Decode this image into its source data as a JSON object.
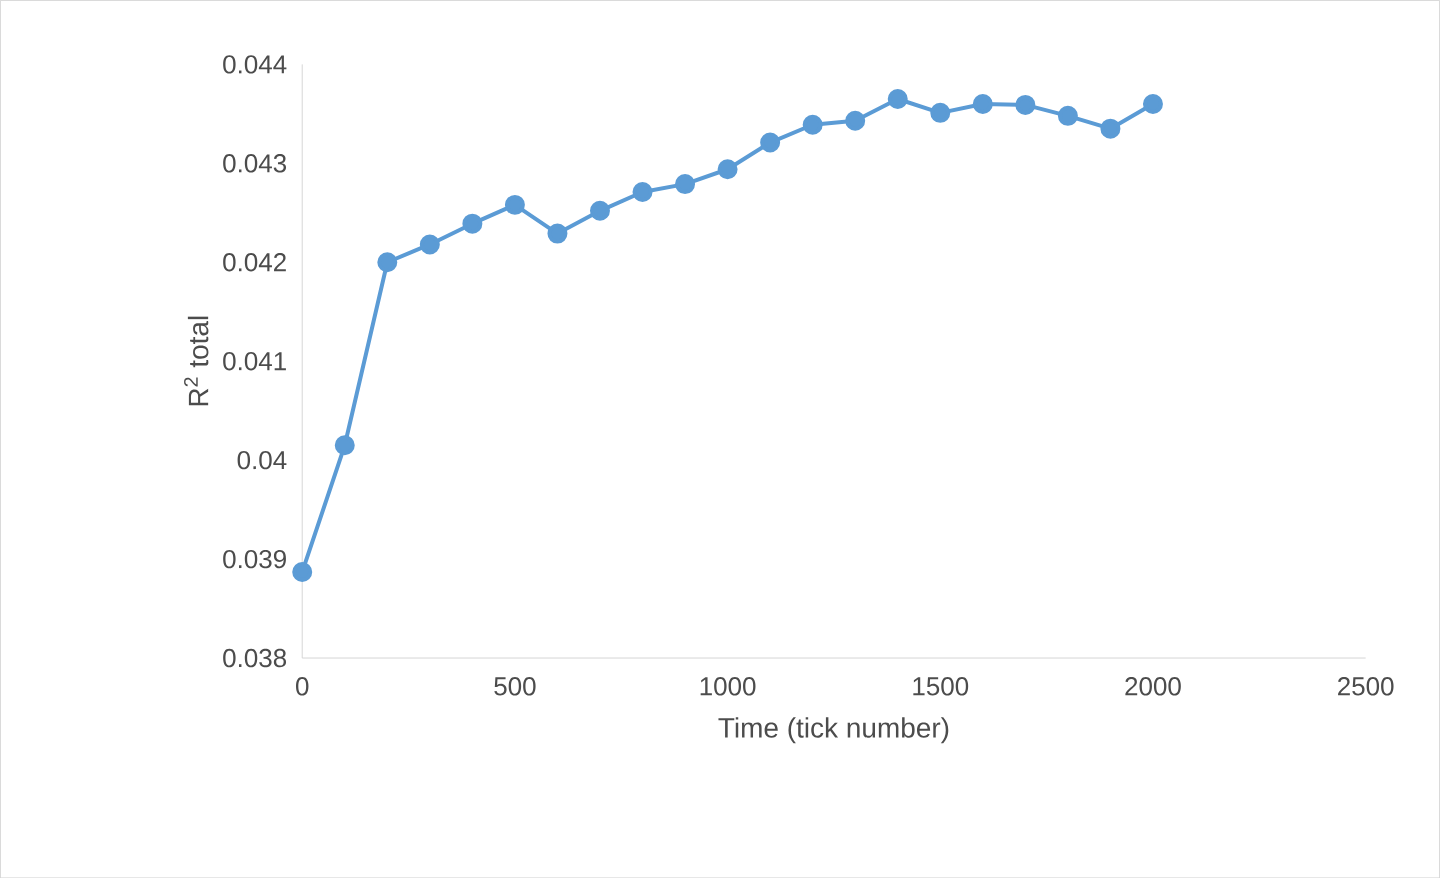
{
  "chart_data": {
    "type": "line",
    "xlabel": "Time (tick number)",
    "ylabel": "R$^{2}$ total",
    "x": [
      0,
      100,
      200,
      300,
      400,
      500,
      600,
      700,
      800,
      900,
      1000,
      1100,
      1200,
      1300,
      1400,
      1500,
      1600,
      1700,
      1800,
      1900,
      2000
    ],
    "series": [
      {
        "color": "#5b9bd5",
        "values": [
          0.03887,
          0.04015,
          0.042,
          0.04218,
          0.04239,
          0.04258,
          0.04229,
          0.04252,
          0.04271,
          0.04279,
          0.04294,
          0.04321,
          0.04339,
          0.04343,
          0.04365,
          0.04351,
          0.0436,
          0.04359,
          0.04348,
          0.04335,
          0.0436
        ]
      }
    ],
    "xlim": [
      0,
      2500
    ],
    "xticks": [
      0,
      500,
      1000,
      1500,
      2000,
      2500
    ],
    "ylim": [
      0.038,
      0.044
    ],
    "yticks": [
      0.038,
      0.039,
      0.04,
      0.041,
      0.042,
      0.043,
      0.044
    ],
    "grid": false,
    "marker": "circle",
    "line_style": "solid"
  }
}
